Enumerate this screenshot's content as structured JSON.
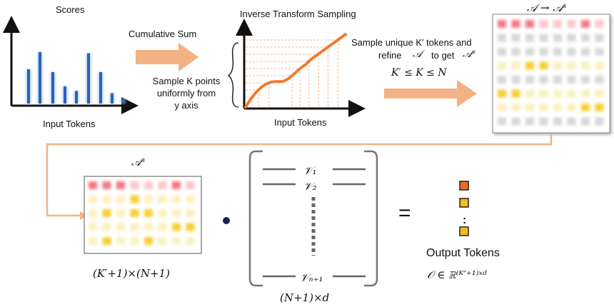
{
  "scores_panel": {
    "title": "Scores",
    "xlabel": "Input Tokens",
    "bar_values": [
      0.6,
      0.9,
      0.55,
      0.3,
      0.22,
      0.88,
      0.55,
      0.18,
      0.08
    ]
  },
  "arrow1": {
    "label": "Cumulative Sum"
  },
  "sample_note": {
    "line1": "Sample K points",
    "line2": "uniformly from",
    "line3": "y axis"
  },
  "its_panel": {
    "title": "Inverse Transform Sampling",
    "xlabel": "Input Tokens"
  },
  "step_note": {
    "line1": "Sample unique K′ tokens and",
    "line2a": "refine",
    "line2b": "𝒜",
    "line2c": "to get",
    "line2d": "𝒜ˢ",
    "condition": "K′ ≤ K ≤ N"
  },
  "attn_full": {
    "title": "𝒜 → 𝒜ˢ"
  },
  "attn_sparse": {
    "title": "𝒜ˢ",
    "dims": "(K′+1)×(N+1)"
  },
  "values_matrix": {
    "v1": "𝒱₁",
    "v2": "𝒱₂",
    "vn": "𝒱ₙ₊₁",
    "dims": "(N+1)×d"
  },
  "operators": {
    "equals": "="
  },
  "output": {
    "title": "Output Tokens",
    "formula": "𝒪 ∈ ℝ⁽ᴷ′⁺¹⁾ˣᵈ",
    "ellipsis": ":"
  },
  "colors": {
    "bar": "#2b62b8",
    "curve": "#ee7c2e",
    "arrow": "#f4b183",
    "red": "#f06070",
    "yellow": "#f5c400",
    "grey": "#b8b8b8",
    "orange_box": "#e86c2a",
    "yellow_box": "#f5bd1f"
  },
  "full_matrix": {
    "rows": [
      [
        "R",
        "R",
        "R",
        "r",
        "r",
        "r",
        "R",
        "r"
      ],
      [
        "g",
        "g",
        "g",
        "g",
        "g",
        "g",
        "g",
        "g"
      ],
      [
        "g",
        "g",
        "g",
        "g",
        "g",
        "g",
        "g",
        "g"
      ],
      [
        "y",
        "y",
        "Y",
        "Y",
        "y",
        "y",
        "y",
        "y"
      ],
      [
        "g",
        "g",
        "g",
        "g",
        "g",
        "g",
        "g",
        "g"
      ],
      [
        "Y",
        "Y",
        "y",
        "y",
        "y",
        "y",
        "y",
        "y"
      ],
      [
        "y",
        "y",
        "y",
        "y",
        "y",
        "y",
        "Y",
        "Y"
      ],
      [
        "g",
        "g",
        "g",
        "g",
        "g",
        "g",
        "g",
        "g"
      ]
    ]
  },
  "sparse_matrix": {
    "rows": [
      [
        "R",
        "R",
        "R",
        "r",
        "r",
        "r",
        "R",
        "r"
      ],
      [
        "y",
        "y",
        "y",
        "Y",
        "y",
        "y",
        "y",
        "y"
      ],
      [
        "y",
        "Y",
        "y",
        "Y",
        "Y",
        "y",
        "y",
        "y"
      ],
      [
        "y",
        "y",
        "y",
        "y",
        "y",
        "y",
        "Y",
        "Y"
      ],
      [
        "y",
        "Y",
        "y",
        "y",
        "Y",
        "y",
        "y",
        "y"
      ]
    ]
  }
}
